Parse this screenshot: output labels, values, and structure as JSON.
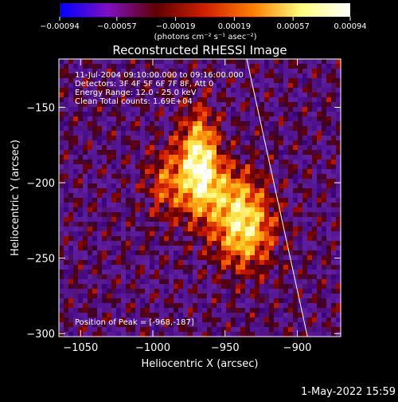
{
  "chart_data": {
    "type": "heatmap",
    "title": "Reconstructed RHESSI Image",
    "xlabel": "Heliocentric X (arcsec)",
    "ylabel": "Heliocentric Y (arcsec)",
    "xlim": [
      -1065,
      -870
    ],
    "ylim": [
      -302,
      -118
    ],
    "x_ticks": [
      -1050,
      -1000,
      -950,
      -900
    ],
    "x_tick_labels": [
      "−1050",
      "−1000",
      "−950",
      "−900"
    ],
    "y_ticks": [
      -150,
      -200,
      -250,
      -300
    ],
    "y_tick_labels": [
      "−150",
      "−200",
      "−250",
      "−300"
    ],
    "colorbar": {
      "range": [
        -0.00094,
        0.00094
      ],
      "ticks": [
        -0.00094,
        -0.00057,
        -0.00019,
        0.00019,
        0.00057,
        0.00094
      ],
      "tick_labels": [
        "−0.00094",
        "−0.00057",
        "−0.00019",
        "0.00019",
        "0.00057",
        "0.00094"
      ],
      "unit_label": "(photons cm⁻² s⁻¹ asec⁻²)",
      "colors": [
        "#0000ff",
        "#8010c0",
        "#600000",
        "#d02000",
        "#ff8000",
        "#ffff80",
        "#ffffff"
      ]
    },
    "info_lines": [
      "11-Jul-2004 09:10:00.000 to 09:16:00.000",
      "Detectors: 3F 4F 5F 6F 7F 8F, Att 0",
      "Energy Range: 12.0 - 25.0 keV",
      "Clean    Total counts: 1.69E+04"
    ],
    "peak_label": "Position of Peak = [-968,-187]",
    "peak": [
      -968,
      -187
    ],
    "sources": [
      {
        "x": -968,
        "y": -187,
        "sigma_x": 9,
        "sigma_y": 22,
        "amp": 1.0
      },
      {
        "x": -937,
        "y": -230,
        "sigma_x": 14,
        "sigma_y": 18,
        "amp": 0.85
      },
      {
        "x": -990,
        "y": -200,
        "sigma_x": 10,
        "sigma_y": 16,
        "amp": 0.45
      },
      {
        "x": -950,
        "y": -205,
        "sigma_x": 14,
        "sigma_y": 14,
        "amp": 0.4
      }
    ],
    "limb_line": [
      [
        -935,
        -118
      ],
      [
        -893,
        -302
      ]
    ],
    "background_color": "#6020a0"
  },
  "timestamp": "1-May-2022 15:59"
}
